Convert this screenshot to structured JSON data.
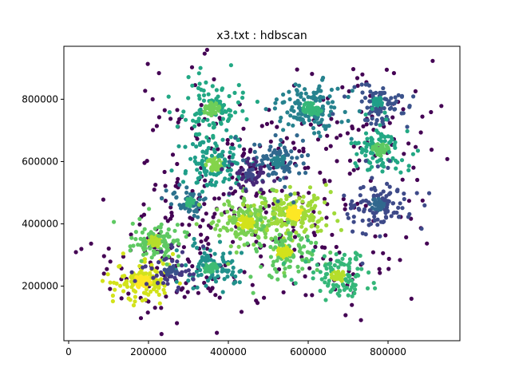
{
  "chart_data": {
    "type": "scatter",
    "title": "x3.txt : hdbscan",
    "xlabel": "",
    "ylabel": "",
    "xlim": [
      -12000,
      980000
    ],
    "ylim": [
      25000,
      970000
    ],
    "x_ticks": [
      0,
      200000,
      400000,
      600000,
      800000
    ],
    "x_tick_labels": [
      "0",
      "200000",
      "400000",
      "600000",
      "800000"
    ],
    "y_ticks": [
      200000,
      400000,
      600000,
      800000
    ],
    "y_tick_labels": [
      "200000",
      "400000",
      "600000",
      "800000"
    ],
    "grid": false,
    "legend": "none",
    "colormap": "viridis",
    "noise_color": "#440154",
    "clusters": [
      {
        "x": 185000,
        "y": 215000,
        "spread": 48000,
        "n": 170,
        "color": "#d2e21b",
        "core": "#fde725"
      },
      {
        "x": 215000,
        "y": 345000,
        "spread": 42000,
        "n": 130,
        "color": "#5ec962",
        "core": "#b5de2b"
      },
      {
        "x": 355000,
        "y": 260000,
        "spread": 45000,
        "n": 130,
        "color": "#21918c",
        "core": "#3fbc73"
      },
      {
        "x": 305000,
        "y": 470000,
        "spread": 30000,
        "n": 60,
        "color": "#2c728e",
        "core": "#35b779"
      },
      {
        "x": 445000,
        "y": 405000,
        "spread": 50000,
        "n": 200,
        "color": "#7ad151",
        "core": "#d2e21b"
      },
      {
        "x": 565000,
        "y": 435000,
        "spread": 50000,
        "n": 220,
        "color": "#a0da39",
        "core": "#fde725"
      },
      {
        "x": 540000,
        "y": 310000,
        "spread": 45000,
        "n": 140,
        "color": "#5ec962",
        "core": "#d2e21b"
      },
      {
        "x": 675000,
        "y": 235000,
        "spread": 45000,
        "n": 140,
        "color": "#35b779",
        "core": "#b5de2b"
      },
      {
        "x": 355000,
        "y": 770000,
        "spread": 52000,
        "n": 150,
        "color": "#22a884",
        "core": "#6ece58"
      },
      {
        "x": 365000,
        "y": 590000,
        "spread": 52000,
        "n": 150,
        "color": "#1f9e89",
        "core": "#84d44b"
      },
      {
        "x": 525000,
        "y": 600000,
        "spread": 48000,
        "n": 110,
        "color": "#31688e",
        "core": "#26828e"
      },
      {
        "x": 610000,
        "y": 770000,
        "spread": 55000,
        "n": 160,
        "color": "#26828e",
        "core": "#35b779"
      },
      {
        "x": 775000,
        "y": 790000,
        "spread": 45000,
        "n": 110,
        "color": "#3b528b",
        "core": "#1f9e89"
      },
      {
        "x": 780000,
        "y": 640000,
        "spread": 48000,
        "n": 130,
        "color": "#22a884",
        "core": "#5ec962"
      },
      {
        "x": 775000,
        "y": 460000,
        "spread": 50000,
        "n": 150,
        "color": "#3e4a89",
        "core": "#31688e"
      },
      {
        "x": 255000,
        "y": 250000,
        "spread": 38000,
        "n": 70,
        "color": "#443983",
        "core": "#3b528b"
      },
      {
        "x": 455000,
        "y": 560000,
        "spread": 40000,
        "n": 60,
        "color": "#482878",
        "core": "#3e4a89"
      }
    ],
    "noise_points": 450
  }
}
